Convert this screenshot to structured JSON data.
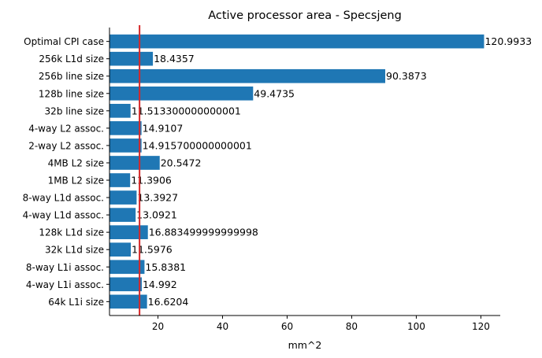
{
  "chart_data": {
    "type": "bar",
    "orientation": "horizontal",
    "title": "Active processor area - Specsjeng",
    "xlabel": "mm^2",
    "ylabel": "",
    "xlim": [
      5,
      126
    ],
    "xticks": [
      20,
      40,
      60,
      80,
      100,
      120
    ],
    "grid": false,
    "bar_color": "#1f77b4",
    "reference_line": {
      "value": 14.3,
      "color": "#d62728"
    },
    "categories": [
      "Optimal CPI case",
      "256k L1d size",
      "256b line size",
      "128b line size",
      "32b line size",
      "4-way L2 assoc.",
      "2-way L2 assoc.",
      "4MB L2 size",
      "1MB L2 size",
      "8-way L1d assoc.",
      "4-way L1d assoc.",
      "128k L1d size",
      "32k L1d size",
      "8-way L1i assoc.",
      "4-way L1i assoc.",
      "64k L1i size"
    ],
    "values": [
      120.9933,
      18.4357,
      90.3873,
      49.4735,
      11.5133,
      14.9107,
      14.9157,
      20.5472,
      11.3906,
      13.3927,
      13.0921,
      16.8835,
      11.5976,
      15.8381,
      14.992,
      16.6204
    ],
    "value_labels": [
      "120.9933",
      "18.4357",
      "90.3873",
      "49.4735",
      "11.513300000000001",
      "14.9107",
      "14.915700000000001",
      "20.5472",
      "11.3906",
      "13.3927",
      "13.0921",
      "16.883499999999998",
      "11.5976",
      "15.8381",
      "14.992",
      "16.6204"
    ]
  }
}
